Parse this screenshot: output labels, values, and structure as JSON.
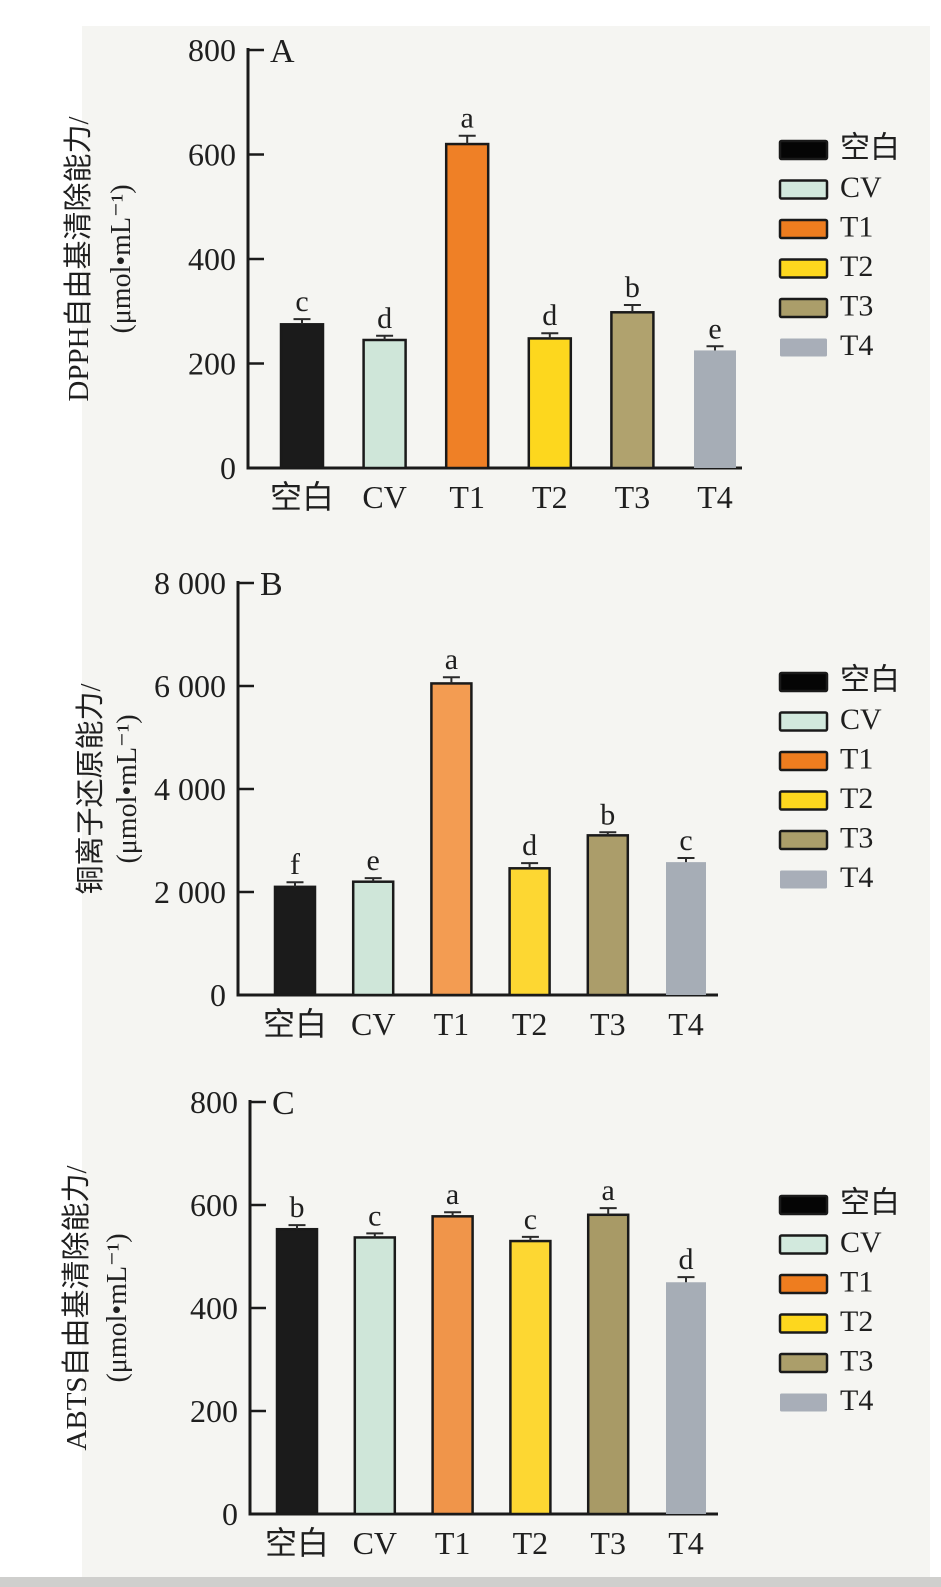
{
  "page": {
    "background_color": "#f5f5f2",
    "scan_edge_color": "#cfcfcd",
    "axis_color": "#1a1a1a",
    "text_color": "#1f1f1f"
  },
  "chart_data": [
    {
      "type": "bar",
      "panel_label": "A",
      "ylabel_line1": "DPPH自由基清除能力/",
      "ylabel_line2": "(μmol•mL⁻¹)",
      "categories": [
        "空白",
        "CV",
        "T1",
        "T2",
        "T3",
        "T4"
      ],
      "values": [
        275,
        245,
        620,
        248,
        298,
        225
      ],
      "errors": [
        10,
        8,
        16,
        10,
        14,
        8
      ],
      "sig_letters": [
        "c",
        "d",
        "a",
        "d",
        "b",
        "e"
      ],
      "ylim": [
        0,
        800
      ],
      "yticks": [
        0,
        200,
        400,
        600,
        800
      ],
      "ytick_labels": [
        "0",
        "200",
        "400",
        "600",
        "800"
      ],
      "grid": false,
      "legend_position": "right",
      "legend_labels": [
        "空白",
        "CV",
        "T1",
        "T2",
        "T3",
        "T4"
      ],
      "bar_colors": [
        "#1b1b1b",
        "#cfe6d9",
        "#ef8026",
        "#fdd71e",
        "#b0a26e",
        "#a6adb6"
      ],
      "legend_colors": [
        "#050505",
        "#d2e9dd",
        "#ee7d1f",
        "#fdd71e",
        "#ab9e6a",
        "#a8aeb8"
      ]
    },
    {
      "type": "bar",
      "panel_label": "B",
      "ylabel_line1": "铜离子还原能力/",
      "ylabel_line2": "(μmol•mL⁻¹)",
      "categories": [
        "空白",
        "CV",
        "T1",
        "T2",
        "T3",
        "T4"
      ],
      "values": [
        2100,
        2200,
        6050,
        2460,
        3100,
        2580
      ],
      "errors": [
        90,
        70,
        120,
        100,
        60,
        80
      ],
      "sig_letters": [
        "f",
        "e",
        "a",
        "d",
        "b",
        "c"
      ],
      "ylim": [
        0,
        8000
      ],
      "yticks": [
        0,
        2000,
        4000,
        6000,
        8000
      ],
      "ytick_labels": [
        "0",
        "2 000",
        "4 000",
        "6 000",
        "8 000"
      ],
      "grid": false,
      "legend_position": "right",
      "legend_labels": [
        "空白",
        "CV",
        "T1",
        "T2",
        "T3",
        "T4"
      ],
      "bar_colors": [
        "#1b1b1b",
        "#cfe6d9",
        "#f39c52",
        "#fdd732",
        "#ab9d6a",
        "#a6adb6"
      ],
      "legend_colors": [
        "#050505",
        "#d2e9dd",
        "#ee7d1f",
        "#fdd71e",
        "#ab9e6a",
        "#a8aeb8"
      ]
    },
    {
      "type": "bar",
      "panel_label": "C",
      "ylabel_line1": "ABTS自由基清除能力/",
      "ylabel_line2": "(μmol•mL⁻¹)",
      "categories": [
        "空白",
        "CV",
        "T1",
        "T2",
        "T3",
        "T4"
      ],
      "values": [
        553,
        537,
        578,
        530,
        581,
        450
      ],
      "errors": [
        8,
        8,
        8,
        8,
        13,
        10
      ],
      "sig_letters": [
        "b",
        "c",
        "a",
        "c",
        "a",
        "d"
      ],
      "ylim": [
        0,
        800
      ],
      "yticks": [
        0,
        200,
        400,
        600,
        800
      ],
      "ytick_labels": [
        "0",
        "200",
        "400",
        "600",
        "800"
      ],
      "grid": false,
      "legend_position": "right",
      "legend_labels": [
        "空白",
        "CV",
        "T1",
        "T2",
        "T3",
        "T4"
      ],
      "bar_colors": [
        "#1b1b1b",
        "#cfe6d9",
        "#f0954a",
        "#fdd732",
        "#a89a66",
        "#a6adb6"
      ],
      "legend_colors": [
        "#050505",
        "#d2e9dd",
        "#ee7d1f",
        "#fdd71e",
        "#ab9e6a",
        "#a8aeb8"
      ]
    }
  ]
}
